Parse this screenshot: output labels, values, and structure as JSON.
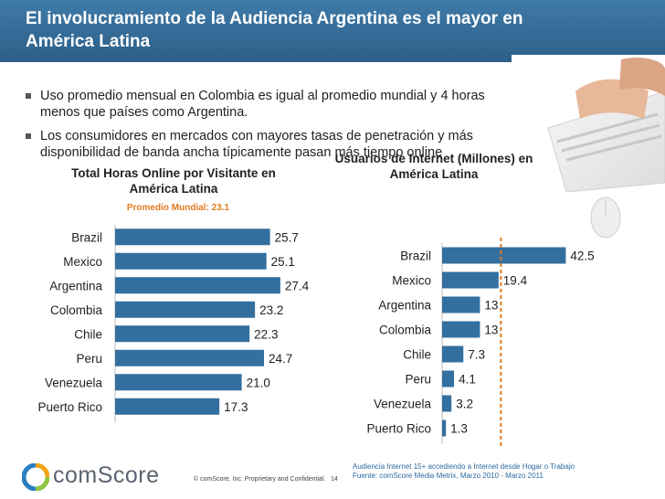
{
  "header": {
    "title": "El involucramiento de la Audiencia Argentina es el mayor en América Latina"
  },
  "bullets": [
    "Uso promedio mensual en Colombia es igual al promedio mundial y 4 horas menos que países como Argentina.",
    "Los consumidores en mercados con mayores tasas de penetración y más disponibilidad de banda ancha típicamente pasan más tiempo online"
  ],
  "colors": {
    "bar": "#336f9f",
    "reference_line": "#e07a1f",
    "header": "#2f6690"
  },
  "chart_data": [
    {
      "type": "bar",
      "orientation": "horizontal",
      "title": "Total Horas Online por Visitante en América Latina",
      "subtitle": "Promedio Mundial: 23.1",
      "categories": [
        "Brazil",
        "Mexico",
        "Argentina",
        "Colombia",
        "Chile",
        "Peru",
        "Venezuela",
        "Puerto Rico"
      ],
      "values": [
        25.7,
        25.1,
        27.4,
        23.2,
        22.3,
        24.7,
        21.0,
        17.3
      ],
      "labels": [
        "25.7",
        "25.1",
        "27.4",
        "23.2",
        "22.3",
        "24.7",
        "21.0",
        "17.3"
      ],
      "xlim": [
        0,
        30
      ]
    },
    {
      "type": "bar",
      "orientation": "horizontal",
      "title": "Usuarios de Internet (Millones) en América Latina",
      "categories": [
        "Brazil",
        "Mexico",
        "Argentina",
        "Colombia",
        "Chile",
        "Peru",
        "Venezuela",
        "Puerto Rico"
      ],
      "values": [
        42.5,
        19.4,
        13,
        13,
        7.3,
        4.1,
        3.2,
        1.3
      ],
      "labels": [
        "42.5",
        "19.4",
        "13",
        "13",
        "7.3",
        "4.1",
        "3.2",
        "1.3"
      ],
      "reference_value": 20.2,
      "xlim": [
        0,
        43
      ]
    }
  ],
  "footer": {
    "logo": "comScore",
    "copyright": "© comScore, Inc.  Proprietary and Confidential.",
    "page": "14",
    "source_lines": [
      "Audiencia Internet 15+ accediendo a Internet desde Hogar o Trabajo",
      "Fuente:  comScore Media Metrix, Marzo 2010 - Marzo 2011"
    ]
  }
}
